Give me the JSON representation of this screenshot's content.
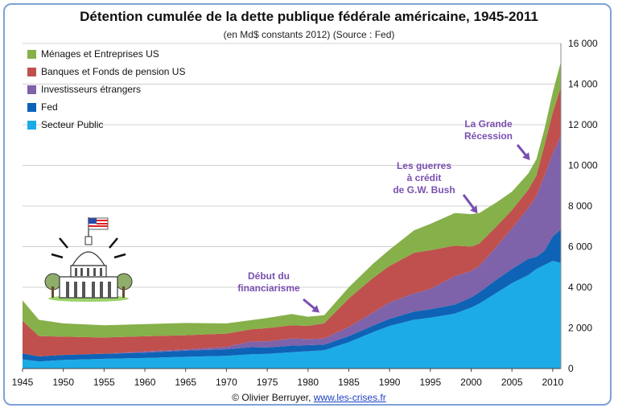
{
  "chart_data": {
    "type": "area",
    "stacked": true,
    "title": "Détention cumulée de la dette publique fédérale américaine, 1945-2011",
    "subtitle": "(en Md$ constants 2012) (Source : Fed)",
    "xlabel": "",
    "ylabel": "",
    "xlim": [
      1945,
      2011
    ],
    "ylim": [
      0,
      16000
    ],
    "x_ticks": [
      1945,
      1950,
      1955,
      1960,
      1965,
      1970,
      1975,
      1980,
      1985,
      1990,
      1995,
      2000,
      2005,
      2010
    ],
    "y_ticks": [
      0,
      2000,
      4000,
      6000,
      8000,
      10000,
      12000,
      14000,
      16000
    ],
    "y_tick_labels": [
      "0",
      "2 000",
      "4 000",
      "6 000",
      "8 000",
      "10 000",
      "12 000",
      "14 000",
      "16 000"
    ],
    "y_axis_side": "right",
    "grid": true,
    "legend_position": "top-left",
    "x": [
      1945,
      1947,
      1950,
      1955,
      1960,
      1965,
      1970,
      1973,
      1975,
      1978,
      1980,
      1982,
      1985,
      1988,
      1990,
      1993,
      1995,
      1998,
      2000,
      2001,
      2003,
      2005,
      2007,
      2008,
      2009,
      2010,
      2011
    ],
    "series": [
      {
        "name": "Secteur Public",
        "color": "#1cabe6",
        "values": [
          450,
          350,
          420,
          480,
          520,
          580,
          620,
          700,
          720,
          800,
          850,
          900,
          1300,
          1800,
          2100,
          2400,
          2500,
          2700,
          3000,
          3200,
          3700,
          4200,
          4600,
          4900,
          5100,
          5300,
          5200
        ]
      },
      {
        "name": "Fed",
        "color": "#0e63b6",
        "values": [
          300,
          250,
          250,
          250,
          260,
          300,
          330,
          350,
          320,
          330,
          300,
          280,
          300,
          320,
          350,
          400,
          420,
          450,
          500,
          550,
          650,
          700,
          800,
          600,
          700,
          1200,
          1650
        ]
      },
      {
        "name": "Investisseurs étrangers",
        "color": "#7e62aa",
        "values": [
          0,
          0,
          0,
          0,
          60,
          60,
          120,
          280,
          300,
          350,
          300,
          300,
          450,
          650,
          800,
          900,
          1000,
          1400,
          1300,
          1300,
          1600,
          2000,
          2500,
          3000,
          3700,
          4100,
          4600
        ]
      },
      {
        "name": "Banques et Fonds de pension US",
        "color": "#c0504d",
        "values": [
          1600,
          1000,
          900,
          800,
          750,
          700,
          650,
          600,
          650,
          650,
          650,
          750,
          1400,
          1700,
          1800,
          2000,
          1900,
          1500,
          1200,
          1100,
          1000,
          900,
          900,
          1000,
          1500,
          2000,
          2400
        ]
      },
      {
        "name": "Ménages et Entreprises US",
        "color": "#86b04a",
        "values": [
          1000,
          800,
          650,
          600,
          600,
          600,
          500,
          450,
          500,
          550,
          450,
          400,
          550,
          700,
          800,
          1100,
          1300,
          1600,
          1600,
          1500,
          1200,
          900,
          800,
          800,
          800,
          1000,
          1250
        ]
      }
    ],
    "annotations": [
      {
        "lines": [
          "Début du",
          "financiarisme"
        ]
      },
      {
        "lines": [
          "Les guerres",
          "à crédit",
          "de G.W. Bush"
        ]
      },
      {
        "lines": [
          "La Grande",
          "Récession"
        ]
      }
    ]
  },
  "credit": {
    "author": "© Olivier Berruyer, ",
    "site": "www.les-crises.fr"
  },
  "colors": {
    "frame": "#7da2d6",
    "annotation": "#7a4fb0",
    "link": "#1f3fc4"
  }
}
